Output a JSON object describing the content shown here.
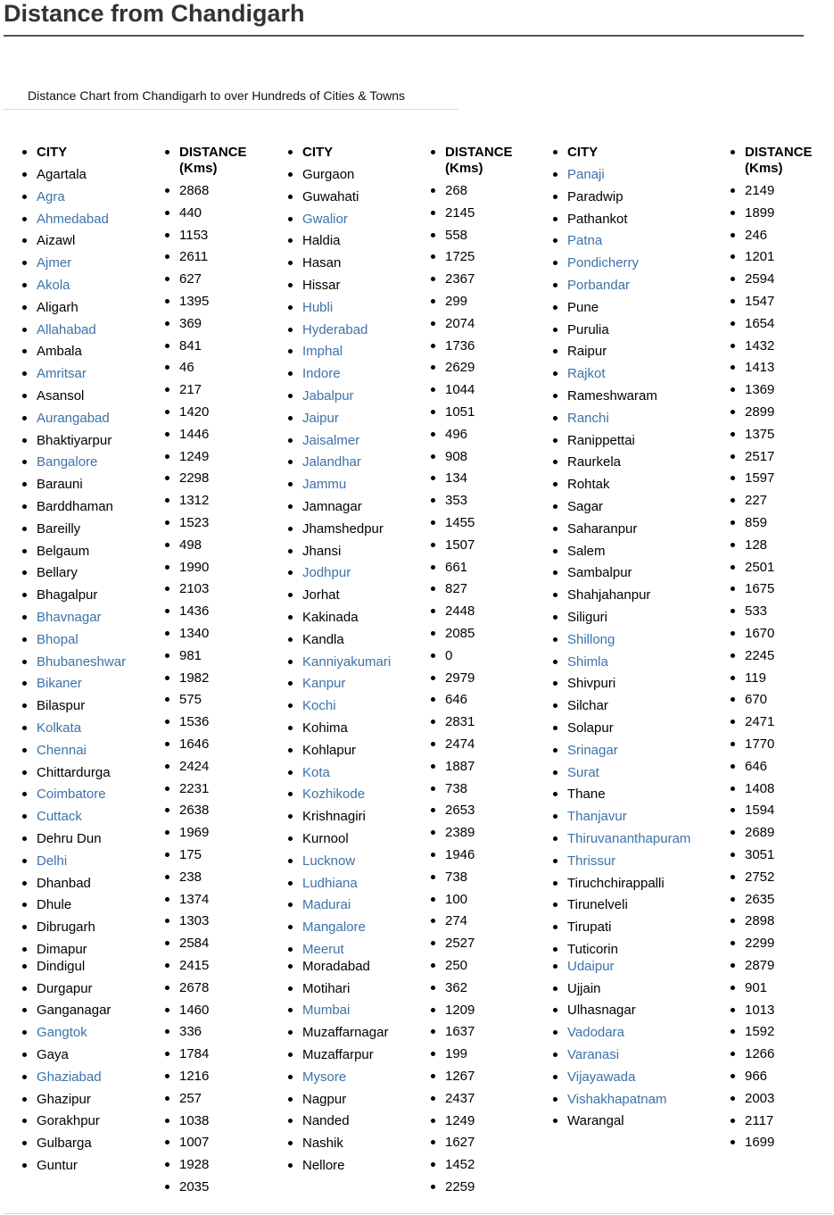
{
  "page_title": "Distance from Chandigarh",
  "subtitle": "Distance Chart from Chandigarh to over Hundreds of Cities & Towns",
  "headers": {
    "city": "CITY",
    "distance": "DISTANCE (Kms)"
  },
  "groups": [
    {
      "cities": [
        "Agartala",
        "Agra",
        "Ahmedabad",
        "Aizawl",
        "Ajmer",
        "Akola",
        "Aligarh",
        "Allahabad",
        "Ambala",
        "Amritsar",
        "Asansol",
        "Aurangabad",
        "Bhaktiyarpur",
        "Bangalore",
        "Barauni",
        "Barddhaman",
        "Bareilly",
        "Belgaum",
        "Bellary",
        "Bhagalpur",
        "Bhavnagar",
        "Bhopal",
        "Bhubaneshwar",
        "Bikaner",
        "Bilaspur",
        "Kolkata",
        "Chennai",
        "Chittardurga",
        "Coimbatore",
        "Cuttack",
        "Dehru Dun",
        "Delhi",
        "Dhanbad",
        "Dhule",
        "Dibrugarh",
        "Dimapur",
        "Dindigul",
        "Durgapur",
        "Ganganagar",
        "Gangtok",
        "Gaya",
        "Ghaziabad",
        "Ghazipur",
        "Gorakhpur",
        "Gulbarga",
        "Guntur"
      ],
      "links": [
        false,
        true,
        true,
        false,
        true,
        true,
        false,
        true,
        false,
        true,
        false,
        true,
        false,
        true,
        false,
        false,
        false,
        false,
        false,
        false,
        true,
        true,
        true,
        true,
        false,
        true,
        true,
        false,
        true,
        true,
        false,
        true,
        false,
        false,
        false,
        false,
        false,
        false,
        false,
        true,
        false,
        true,
        false,
        false,
        false,
        false
      ],
      "distances": [
        "2868",
        "440",
        "1153",
        "2611",
        "627",
        "1395",
        "369",
        "841",
        "46",
        "217",
        "1420",
        "1446",
        "1249",
        "2298",
        "1312",
        "1523",
        "498",
        "1990",
        "2103",
        "1436",
        "1340",
        "981",
        "1982",
        "575",
        "1536",
        "1646",
        "2424",
        "2231",
        "2638",
        "1969",
        "175",
        "238",
        "1374",
        "1303",
        "2584",
        "2415",
        "2678",
        "1460",
        "336",
        "1784",
        "1216",
        "257",
        "1038",
        "1007",
        "1928",
        "2035"
      ]
    },
    {
      "cities": [
        "Gurgaon",
        "Guwahati",
        "Gwalior",
        "Haldia",
        "Hasan",
        "Hissar",
        "Hubli",
        "Hyderabad",
        "Imphal",
        "Indore",
        "Jabalpur",
        "Jaipur",
        "Jaisalmer",
        "Jalandhar",
        "Jammu",
        "Jamnagar",
        "Jhamshedpur",
        "Jhansi",
        "Jodhpur",
        "Jorhat",
        "Kakinada",
        "Kandla",
        "Kanniyakumari",
        "Kanpur",
        "Kochi",
        "Kohima",
        "Kohlapur",
        "Kota",
        "Kozhikode",
        "Krishnagiri",
        "Kurnool",
        "Lucknow",
        "Ludhiana",
        "Madurai",
        "Mangalore",
        "Meerut",
        "Moradabad",
        "Motihari",
        "Mumbai",
        "Muzaffarnagar",
        "Muzaffarpur",
        "Mysore",
        "Nagpur",
        "Nanded",
        "Nashik",
        "Nellore"
      ],
      "links": [
        false,
        false,
        true,
        false,
        false,
        false,
        true,
        true,
        true,
        true,
        true,
        true,
        true,
        true,
        true,
        false,
        false,
        false,
        true,
        false,
        false,
        false,
        true,
        true,
        true,
        false,
        false,
        true,
        true,
        false,
        false,
        true,
        true,
        true,
        true,
        true,
        false,
        false,
        true,
        false,
        false,
        true,
        false,
        false,
        false,
        false
      ],
      "distances": [
        "268",
        "2145",
        "558",
        "1725",
        "2367",
        "299",
        "2074",
        "1736",
        "2629",
        "1044",
        "1051",
        "496",
        "908",
        "134",
        "353",
        "1455",
        "1507",
        "661",
        "827",
        "2448",
        "2085",
        "0",
        "2979",
        "646",
        "2831",
        "2474",
        "1887",
        "738",
        "2653",
        "2389",
        "1946",
        "738",
        "100",
        "274",
        "2527",
        "250",
        "362",
        "1209",
        "1637",
        "199",
        "1267",
        "2437",
        "1249",
        "1627",
        "1452",
        "2259"
      ]
    },
    {
      "cities": [
        "Panaji",
        "Paradwip",
        "Pathankot",
        "Patna",
        "Pondicherry",
        "Porbandar",
        "Pune",
        "Purulia",
        "Raipur",
        "Rajkot",
        "Rameshwaram",
        "Ranchi",
        "Ranippettai",
        "Raurkela",
        "Rohtak",
        "Sagar",
        "Saharanpur",
        "Salem",
        "Sambalpur",
        "Shahjahanpur",
        "Siliguri",
        "Shillong",
        "Shimla",
        "Shivpuri",
        "Silchar",
        "Solapur",
        "Srinagar",
        "Surat",
        "Thane",
        "Thanjavur",
        "Thiruvananthapuram",
        "Thrissur",
        "Tiruchchirappalli",
        "Tirunelveli",
        "Tirupati",
        "Tuticorin",
        "Udaipur",
        "Ujjain",
        "Ulhasnagar",
        "Vadodara",
        "Varanasi",
        "Vijayawada",
        "Vishakhapatnam",
        "Warangal"
      ],
      "links": [
        true,
        false,
        false,
        true,
        true,
        true,
        false,
        false,
        false,
        true,
        false,
        true,
        false,
        false,
        false,
        false,
        false,
        false,
        false,
        false,
        false,
        true,
        true,
        false,
        false,
        false,
        true,
        true,
        false,
        true,
        true,
        true,
        false,
        false,
        false,
        false,
        true,
        false,
        false,
        true,
        true,
        true,
        true,
        false
      ],
      "distances": [
        "2149",
        "1899",
        "246",
        "1201",
        "2594",
        "1547",
        "1654",
        "1432",
        "1413",
        "1369",
        "2899",
        "1375",
        "2517",
        "1597",
        "227",
        "859",
        "128",
        "2501",
        "1675",
        "533",
        "1670",
        "2245",
        "119",
        "670",
        "2471",
        "1770",
        "646",
        "1408",
        "1594",
        "2689",
        "3051",
        "2752",
        "2635",
        "2898",
        "2299",
        "2879",
        "901",
        "1013",
        "1592",
        "1266",
        "966",
        "2003",
        "2117",
        "1699"
      ]
    }
  ]
}
